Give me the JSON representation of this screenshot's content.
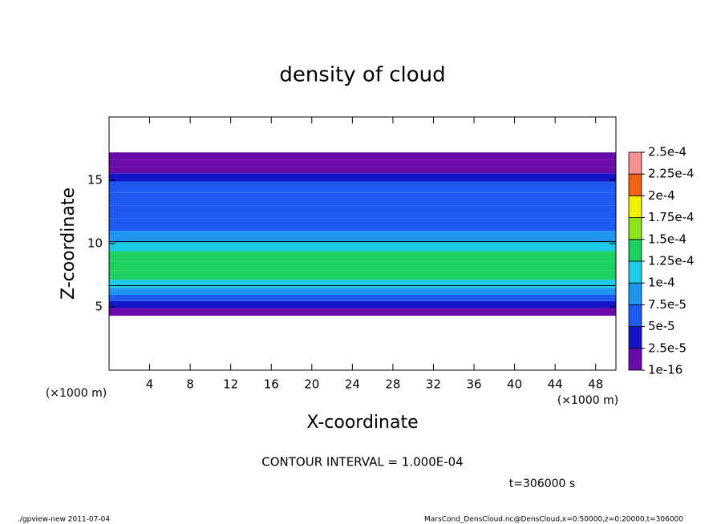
{
  "chart_data": {
    "type": "contour",
    "title": "density of cloud",
    "x_label": "X-coordinate",
    "y_label": "Z-coordinate",
    "axis_unit": "(×1000 m)",
    "xlim": [
      0,
      50
    ],
    "ylim": [
      0,
      20
    ],
    "xticks": [
      4,
      8,
      12,
      16,
      20,
      24,
      28,
      32,
      36,
      40,
      44,
      48
    ],
    "yticks": [
      5,
      10,
      15
    ],
    "profile": {
      "z": [
        4.6,
        5.2,
        5.7,
        6.2,
        6.8,
        7.5,
        8.3,
        9.0,
        9.8,
        10.5,
        11.5,
        12.5,
        13.5,
        14.5,
        15.3,
        15.8,
        16.3,
        16.9
      ],
      "values": [
        1e-05,
        3e-05,
        6e-05,
        8e-05,
        0.000105,
        0.00013,
        0.000145,
        0.000135,
        0.00011,
        9e-05,
        7e-05,
        6e-05,
        5.5e-05,
        5.5e-05,
        4.5e-05,
        2e-05,
        5e-06,
        1e-06
      ]
    },
    "levels": [
      {
        "value": 1e-16,
        "label": "1e-16"
      },
      {
        "value": 2.5e-05,
        "label": "2.5e-5"
      },
      {
        "value": 5e-05,
        "label": "5e-5"
      },
      {
        "value": 7.5e-05,
        "label": "7.5e-5"
      },
      {
        "value": 0.0001,
        "label": "1e-4"
      },
      {
        "value": 0.000125,
        "label": "1.25e-4"
      },
      {
        "value": 0.00015,
        "label": "1.5e-4"
      },
      {
        "value": 0.000175,
        "label": "1.75e-4"
      },
      {
        "value": 0.0002,
        "label": "2e-4"
      },
      {
        "value": 0.000225,
        "label": "2.25e-4"
      },
      {
        "value": 0.00025,
        "label": "2.5e-4"
      }
    ],
    "colors": [
      "#6a0aa8",
      "#1414c8",
      "#1e5af0",
      "#1e96f0",
      "#1ecbe6",
      "#1ed060",
      "#8ce61e",
      "#f0f000",
      "#f06414",
      "#f49090"
    ],
    "contour_interval": {
      "value": 0.0001,
      "label": "CONTOUR INTERVAL = 1.000E-04"
    },
    "time_label": "t=306000 s",
    "footer_left": "./gpview-new  2011-07-04",
    "footer_right": "MarsCond_DensCloud.nc@DensCloud,x=0:50000,z=0:20000,t=306000"
  }
}
